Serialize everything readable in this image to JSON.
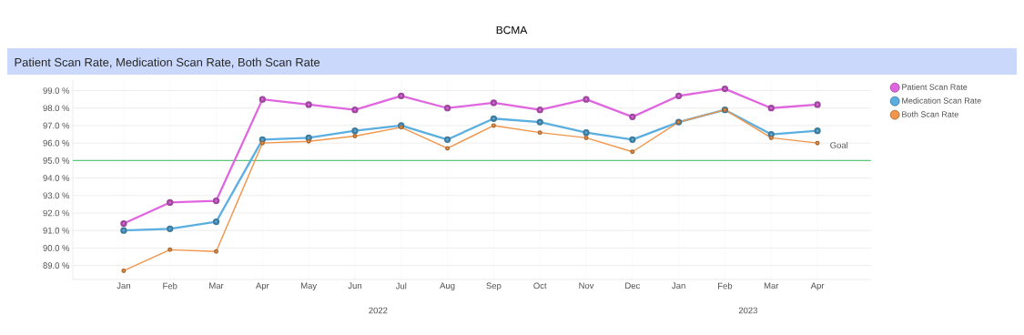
{
  "chart_data": {
    "type": "line",
    "title": "BCMA",
    "subtitle": "Patient Scan Rate, Medication Scan Rate, Both Scan Rate",
    "categories": [
      "Jan",
      "Feb",
      "Mar",
      "Apr",
      "May",
      "Jun",
      "Jul",
      "Aug",
      "Sep",
      "Oct",
      "Nov",
      "Dec",
      "Jan",
      "Feb",
      "Mar",
      "Apr"
    ],
    "series": [
      {
        "name": "Patient Scan Rate",
        "color": "#e066e0",
        "values": [
          91.4,
          92.6,
          92.7,
          98.5,
          98.2,
          97.9,
          98.7,
          98.0,
          98.3,
          97.9,
          98.5,
          97.5,
          98.7,
          99.1,
          98.0,
          98.2
        ]
      },
      {
        "name": "Medication Scan Rate",
        "color": "#5aafe0",
        "values": [
          91.0,
          91.1,
          91.5,
          96.2,
          96.3,
          96.7,
          97.0,
          96.2,
          97.4,
          97.2,
          96.6,
          96.2,
          97.2,
          97.9,
          96.5,
          96.7
        ]
      },
      {
        "name": "Both Scan Rate",
        "color": "#f0954a",
        "values": [
          88.7,
          89.9,
          89.8,
          96.0,
          96.1,
          96.4,
          96.9,
          95.7,
          97.0,
          96.6,
          96.3,
          95.5,
          97.2,
          97.9,
          96.3,
          96.0
        ]
      }
    ],
    "ylim": [
      88.2,
      99.6
    ],
    "yticks": [
      {
        "value": 89,
        "label": "89.0 %"
      },
      {
        "value": 90,
        "label": "90.0 %"
      },
      {
        "value": 91,
        "label": "91.0 %"
      },
      {
        "value": 92,
        "label": "92.0 %"
      },
      {
        "value": 93,
        "label": "93.0 %"
      },
      {
        "value": 94,
        "label": "94.0 %"
      },
      {
        "value": 95,
        "label": "95.0 %"
      },
      {
        "value": 96,
        "label": "96.0 %"
      },
      {
        "value": 97,
        "label": "97.0 %"
      },
      {
        "value": 98,
        "label": "98.0 %"
      },
      {
        "value": 99,
        "label": "99.0 %"
      }
    ],
    "ref_lines": [
      {
        "axis": "y",
        "value": 95,
        "label": "Goal",
        "color": "#5cc97a"
      }
    ],
    "annotations": [
      "2022",
      "2023"
    ],
    "grid": true,
    "legend": "top right",
    "marker": "circle",
    "line_style": "solid"
  }
}
